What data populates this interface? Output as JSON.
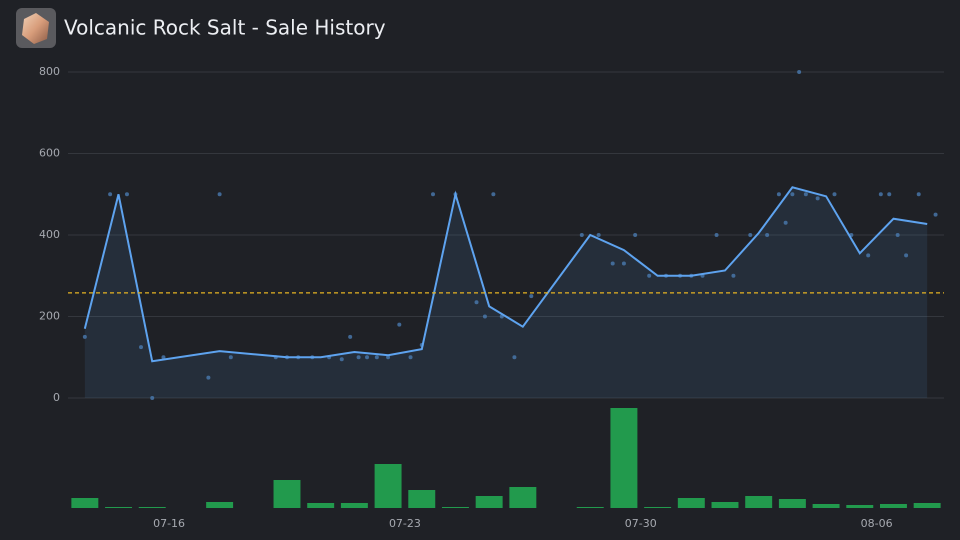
{
  "chart_data": {
    "type": "line",
    "title": "Volcanic Rock Salt - Sale History",
    "x": [
      "07-13",
      "07-14",
      "07-15",
      "07-16",
      "07-17",
      "07-18",
      "07-19",
      "07-20",
      "07-21",
      "07-22",
      "07-23",
      "07-24",
      "07-25",
      "07-26",
      "07-27",
      "07-28",
      "07-29",
      "07-30",
      "07-31",
      "08-01",
      "08-02",
      "08-03",
      "08-04",
      "08-05",
      "08-06",
      "08-07"
    ],
    "xticks": [
      "07-16",
      "07-23",
      "07-30",
      "08-06"
    ],
    "ylim": [
      0,
      800
    ],
    "yticks": [
      0,
      200,
      400,
      600,
      800
    ],
    "grid": true,
    "average": 258,
    "average_color": "#e6b422",
    "price": {
      "color": "#5ea3ef",
      "x": [
        "07-13",
        "07-14",
        "07-15",
        "07-17",
        "07-19",
        "07-20",
        "07-21",
        "07-22",
        "07-23",
        "07-24",
        "07-25",
        "07-26",
        "07-28",
        "07-29",
        "07-30",
        "07-31",
        "08-01",
        "08-02",
        "08-03",
        "08-04",
        "08-05",
        "08-06",
        "08-07"
      ],
      "values": [
        170,
        500,
        90,
        115,
        100,
        100,
        113,
        105,
        120,
        500,
        225,
        175,
        400,
        363,
        300,
        300,
        313,
        405,
        517,
        495,
        355,
        440,
        427
      ]
    },
    "volume": {
      "color": "#229a4d",
      "values": [
        10,
        1,
        1,
        0,
        6,
        0,
        28,
        5,
        5,
        44,
        18,
        1,
        12,
        21,
        0,
        1,
        100,
        1,
        10,
        6,
        12,
        9,
        4,
        3,
        4,
        5
      ]
    },
    "sales": [
      {
        "date": "07-13",
        "price": 150
      },
      {
        "date": "07-14",
        "price": 500
      },
      {
        "date": "07-14",
        "price": 500
      },
      {
        "date": "07-15",
        "price": 125
      },
      {
        "date": "07-15",
        "price": 0
      },
      {
        "date": "07-15",
        "price": 100
      },
      {
        "date": "07-17",
        "price": 50
      },
      {
        "date": "07-17",
        "price": 500
      },
      {
        "date": "07-17",
        "price": 100
      },
      {
        "date": "07-19",
        "price": 100
      },
      {
        "date": "07-19",
        "price": 100
      },
      {
        "date": "07-19",
        "price": 100
      },
      {
        "date": "07-20",
        "price": 100
      },
      {
        "date": "07-20",
        "price": 100
      },
      {
        "date": "07-21",
        "price": 95
      },
      {
        "date": "07-21",
        "price": 150
      },
      {
        "date": "07-21",
        "price": 100
      },
      {
        "date": "07-21",
        "price": 100
      },
      {
        "date": "07-22",
        "price": 100
      },
      {
        "date": "07-22",
        "price": 100
      },
      {
        "date": "07-22",
        "price": 180
      },
      {
        "date": "07-23",
        "price": 100
      },
      {
        "date": "07-23",
        "price": 130
      },
      {
        "date": "07-23",
        "price": 500
      },
      {
        "date": "07-24",
        "price": 500
      },
      {
        "date": "07-25",
        "price": 235
      },
      {
        "date": "07-25",
        "price": 200
      },
      {
        "date": "07-25",
        "price": 500
      },
      {
        "date": "07-25",
        "price": 200
      },
      {
        "date": "07-26",
        "price": 100
      },
      {
        "date": "07-26",
        "price": 250
      },
      {
        "date": "07-28",
        "price": 400
      },
      {
        "date": "07-28",
        "price": 400
      },
      {
        "date": "07-29",
        "price": 330
      },
      {
        "date": "07-29",
        "price": 330
      },
      {
        "date": "07-29",
        "price": 400
      },
      {
        "date": "07-30",
        "price": 300
      },
      {
        "date": "07-30",
        "price": 300
      },
      {
        "date": "07-31",
        "price": 300
      },
      {
        "date": "07-31",
        "price": 300
      },
      {
        "date": "07-31",
        "price": 300
      },
      {
        "date": "08-01",
        "price": 400
      },
      {
        "date": "08-01",
        "price": 300
      },
      {
        "date": "08-02",
        "price": 400
      },
      {
        "date": "08-02",
        "price": 400
      },
      {
        "date": "08-03",
        "price": 500
      },
      {
        "date": "08-03",
        "price": 430
      },
      {
        "date": "08-03",
        "price": 500
      },
      {
        "date": "08-03",
        "price": 800
      },
      {
        "date": "08-03",
        "price": 500
      },
      {
        "date": "08-04",
        "price": 490
      },
      {
        "date": "08-04",
        "price": 500
      },
      {
        "date": "08-05",
        "price": 400
      },
      {
        "date": "08-05",
        "price": 350
      },
      {
        "date": "08-06",
        "price": 500
      },
      {
        "date": "08-06",
        "price": 500
      },
      {
        "date": "08-06",
        "price": 400
      },
      {
        "date": "08-06",
        "price": 350
      },
      {
        "date": "08-07",
        "price": 500
      },
      {
        "date": "08-07",
        "price": 450
      }
    ]
  }
}
